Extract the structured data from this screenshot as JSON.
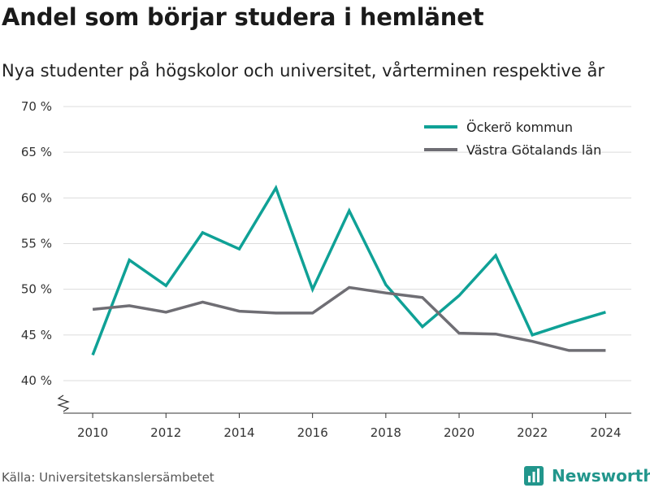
{
  "title": "Andel som börjar studera i hemlänet",
  "subtitle": "Nya studenter på högskolor och universitet, vårterminen respektive år",
  "source": "Källa: Universitetskanslersämbetet",
  "brand": "Newsworthy",
  "colors": {
    "series1": "#0fa196",
    "series2": "#6f6e74",
    "brand": "#22968c"
  },
  "chart_data": {
    "type": "line",
    "title": "Andel som börjar studera i hemlänet",
    "subtitle": "Nya studenter på högskolor och universitet, vårterminen respektive år",
    "x": [
      2010,
      2011,
      2012,
      2013,
      2014,
      2015,
      2016,
      2017,
      2018,
      2019,
      2020,
      2021,
      2022,
      2023,
      2024
    ],
    "xticks": [
      2010,
      2012,
      2014,
      2016,
      2018,
      2020,
      2022,
      2024
    ],
    "xlim": [
      2009.2,
      2024.7
    ],
    "yticks": [
      40,
      45,
      50,
      55,
      60,
      65,
      70
    ],
    "ytick_labels": [
      "40 %",
      "45 %",
      "50 %",
      "55 %",
      "60 %",
      "65 %",
      "70 %"
    ],
    "ylim": [
      40,
      70
    ],
    "y_axis_broken": true,
    "grid": true,
    "legend_position": "top-right",
    "series": [
      {
        "name": "Öckerö kommun",
        "color": "#0fa196",
        "values": [
          42.8,
          53.2,
          50.4,
          56.2,
          54.4,
          61.1,
          50.0,
          58.6,
          50.5,
          45.9,
          49.3,
          53.7,
          45.0,
          46.3,
          47.5
        ]
      },
      {
        "name": "Västra Götalands län",
        "color": "#6f6e74",
        "values": [
          47.8,
          48.2,
          47.5,
          48.6,
          47.6,
          47.4,
          47.4,
          50.2,
          49.6,
          49.1,
          45.2,
          45.1,
          44.3,
          43.3,
          43.3
        ]
      }
    ]
  }
}
